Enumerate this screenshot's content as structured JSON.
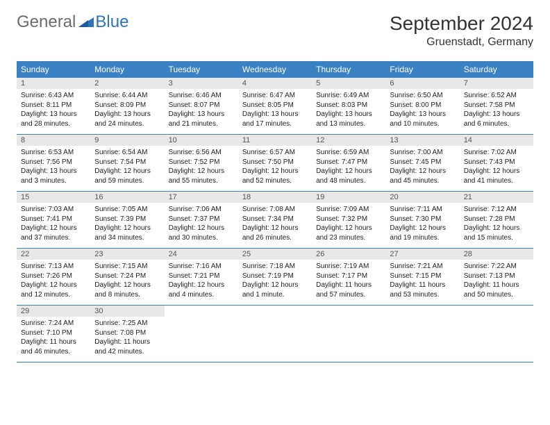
{
  "logo": {
    "general": "General",
    "blue": "Blue"
  },
  "title": "September 2024",
  "location": "Gruenstadt, Germany",
  "colors": {
    "header_bg": "#3b82c4",
    "header_text": "#ffffff",
    "daynum_bg": "#e8e8e8",
    "border": "#3b82c4",
    "logo_gray": "#6b6b6b",
    "logo_blue": "#2f73b8",
    "text": "#222222",
    "background": "#ffffff"
  },
  "fonts": {
    "title_size": 28,
    "location_size": 16,
    "dayheader_size": 12,
    "daynum_size": 11,
    "body_size": 10
  },
  "dayNames": [
    "Sunday",
    "Monday",
    "Tuesday",
    "Wednesday",
    "Thursday",
    "Friday",
    "Saturday"
  ],
  "weeks": [
    [
      {
        "n": "1",
        "sr": "6:43 AM",
        "ss": "8:11 PM",
        "dl": "13 hours and 28 minutes."
      },
      {
        "n": "2",
        "sr": "6:44 AM",
        "ss": "8:09 PM",
        "dl": "13 hours and 24 minutes."
      },
      {
        "n": "3",
        "sr": "6:46 AM",
        "ss": "8:07 PM",
        "dl": "13 hours and 21 minutes."
      },
      {
        "n": "4",
        "sr": "6:47 AM",
        "ss": "8:05 PM",
        "dl": "13 hours and 17 minutes."
      },
      {
        "n": "5",
        "sr": "6:49 AM",
        "ss": "8:03 PM",
        "dl": "13 hours and 13 minutes."
      },
      {
        "n": "6",
        "sr": "6:50 AM",
        "ss": "8:00 PM",
        "dl": "13 hours and 10 minutes."
      },
      {
        "n": "7",
        "sr": "6:52 AM",
        "ss": "7:58 PM",
        "dl": "13 hours and 6 minutes."
      }
    ],
    [
      {
        "n": "8",
        "sr": "6:53 AM",
        "ss": "7:56 PM",
        "dl": "13 hours and 3 minutes."
      },
      {
        "n": "9",
        "sr": "6:54 AM",
        "ss": "7:54 PM",
        "dl": "12 hours and 59 minutes."
      },
      {
        "n": "10",
        "sr": "6:56 AM",
        "ss": "7:52 PM",
        "dl": "12 hours and 55 minutes."
      },
      {
        "n": "11",
        "sr": "6:57 AM",
        "ss": "7:50 PM",
        "dl": "12 hours and 52 minutes."
      },
      {
        "n": "12",
        "sr": "6:59 AM",
        "ss": "7:47 PM",
        "dl": "12 hours and 48 minutes."
      },
      {
        "n": "13",
        "sr": "7:00 AM",
        "ss": "7:45 PM",
        "dl": "12 hours and 45 minutes."
      },
      {
        "n": "14",
        "sr": "7:02 AM",
        "ss": "7:43 PM",
        "dl": "12 hours and 41 minutes."
      }
    ],
    [
      {
        "n": "15",
        "sr": "7:03 AM",
        "ss": "7:41 PM",
        "dl": "12 hours and 37 minutes."
      },
      {
        "n": "16",
        "sr": "7:05 AM",
        "ss": "7:39 PM",
        "dl": "12 hours and 34 minutes."
      },
      {
        "n": "17",
        "sr": "7:06 AM",
        "ss": "7:37 PM",
        "dl": "12 hours and 30 minutes."
      },
      {
        "n": "18",
        "sr": "7:08 AM",
        "ss": "7:34 PM",
        "dl": "12 hours and 26 minutes."
      },
      {
        "n": "19",
        "sr": "7:09 AM",
        "ss": "7:32 PM",
        "dl": "12 hours and 23 minutes."
      },
      {
        "n": "20",
        "sr": "7:11 AM",
        "ss": "7:30 PM",
        "dl": "12 hours and 19 minutes."
      },
      {
        "n": "21",
        "sr": "7:12 AM",
        "ss": "7:28 PM",
        "dl": "12 hours and 15 minutes."
      }
    ],
    [
      {
        "n": "22",
        "sr": "7:13 AM",
        "ss": "7:26 PM",
        "dl": "12 hours and 12 minutes."
      },
      {
        "n": "23",
        "sr": "7:15 AM",
        "ss": "7:24 PM",
        "dl": "12 hours and 8 minutes."
      },
      {
        "n": "24",
        "sr": "7:16 AM",
        "ss": "7:21 PM",
        "dl": "12 hours and 4 minutes."
      },
      {
        "n": "25",
        "sr": "7:18 AM",
        "ss": "7:19 PM",
        "dl": "12 hours and 1 minute."
      },
      {
        "n": "26",
        "sr": "7:19 AM",
        "ss": "7:17 PM",
        "dl": "11 hours and 57 minutes."
      },
      {
        "n": "27",
        "sr": "7:21 AM",
        "ss": "7:15 PM",
        "dl": "11 hours and 53 minutes."
      },
      {
        "n": "28",
        "sr": "7:22 AM",
        "ss": "7:13 PM",
        "dl": "11 hours and 50 minutes."
      }
    ],
    [
      {
        "n": "29",
        "sr": "7:24 AM",
        "ss": "7:10 PM",
        "dl": "11 hours and 46 minutes."
      },
      {
        "n": "30",
        "sr": "7:25 AM",
        "ss": "7:08 PM",
        "dl": "11 hours and 42 minutes."
      },
      null,
      null,
      null,
      null,
      null
    ]
  ],
  "labels": {
    "sunrise": "Sunrise:",
    "sunset": "Sunset:",
    "daylight": "Daylight:"
  }
}
